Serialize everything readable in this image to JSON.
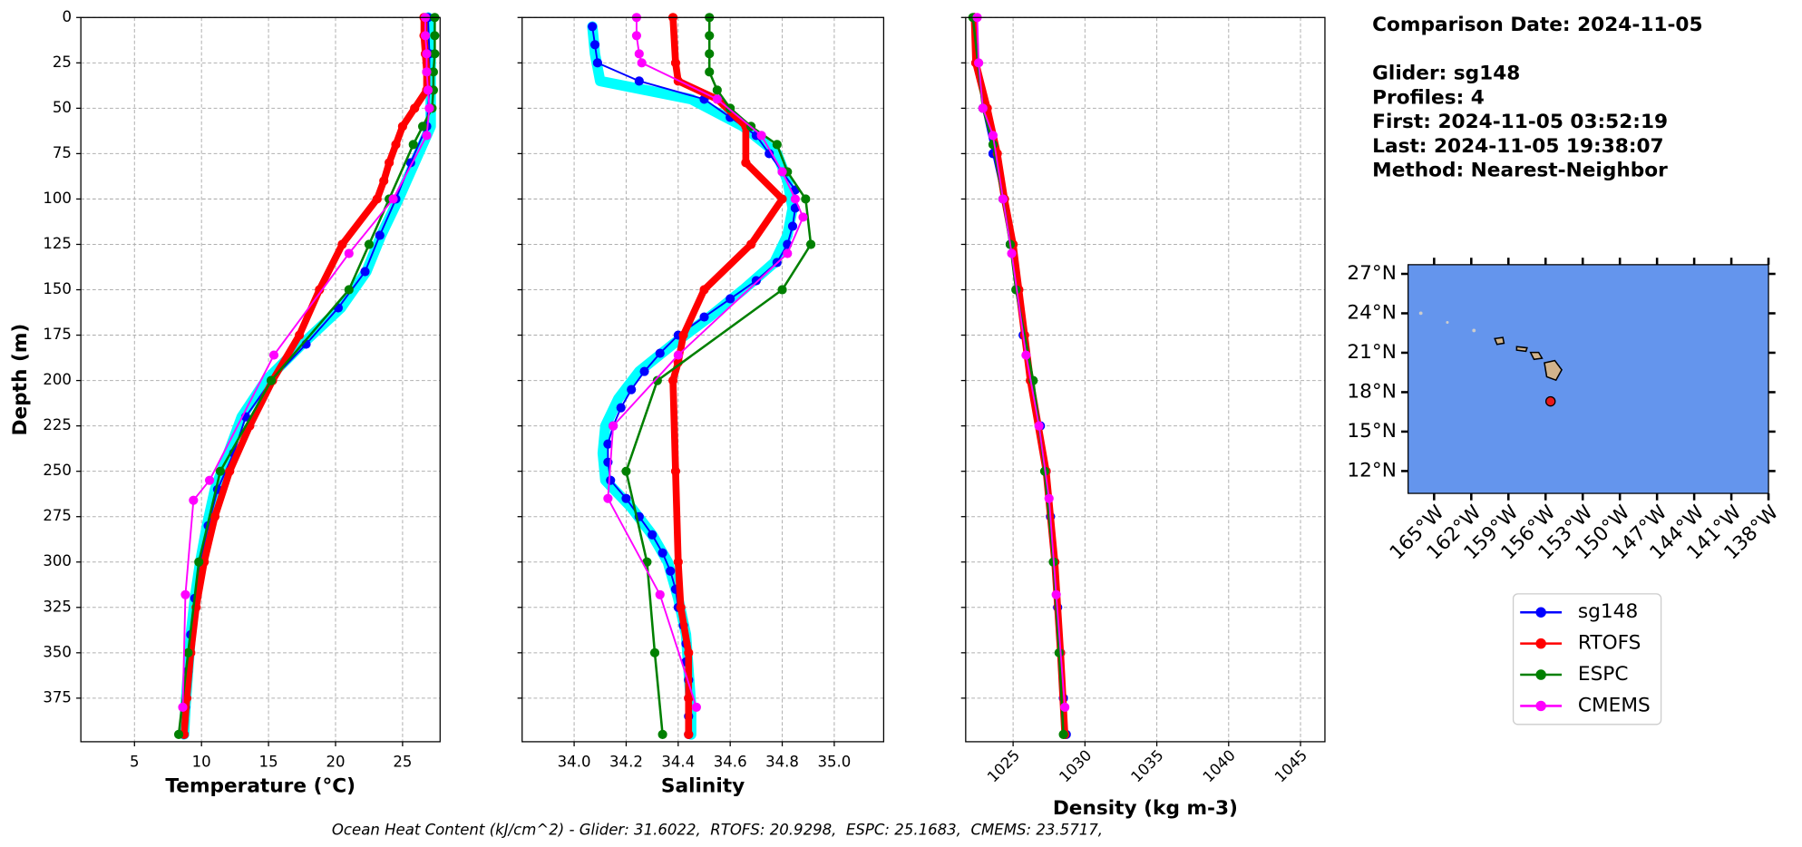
{
  "info": {
    "lines": [
      "Comparison Date: 2024-11-05",
      "Glider: sg148",
      "Profiles: 4",
      "First: 2024-11-05 03:52:19",
      "Last: 2024-11-05 19:38:07",
      "Method: Nearest-Neighbor"
    ]
  },
  "footer": "Ocean Heat Content (kJ/cm^2) - Glider: 31.6022,  RTOFS: 20.9298,  ESPC: 25.1683,  CMEMS: 23.5717,",
  "chart_data": [
    {
      "type": "line",
      "xlabel": "Temperature (°C)",
      "ylabel": "Depth (m)",
      "xlim": [
        1,
        27.8
      ],
      "xticks": [
        5,
        10,
        15,
        20,
        25
      ],
      "ylim": [
        0,
        399
      ],
      "y_inverted": true,
      "yticks": [
        0,
        25,
        50,
        75,
        100,
        125,
        150,
        175,
        200,
        225,
        250,
        275,
        300,
        325,
        350,
        375
      ],
      "grid": true,
      "series": [
        {
          "color": "#00ffff",
          "linewidth": 9,
          "marker": false,
          "y": [
            0,
            20,
            40,
            60,
            80,
            100,
            120,
            140,
            160,
            180,
            200,
            220,
            240,
            260,
            280,
            300,
            320,
            340,
            360,
            380,
            395
          ],
          "x": [
            26.9,
            27.1,
            27.1,
            27.1,
            25.9,
            24.7,
            23.4,
            22.3,
            20.4,
            17.5,
            14.8,
            13,
            12,
            11,
            10.4,
            9.9,
            9.5,
            9.2,
            9,
            8.8,
            8.7
          ]
        },
        {
          "name": "sg148",
          "color": "#0000ff",
          "linewidth": 1.5,
          "marker": true,
          "y": [
            0,
            20,
            40,
            60,
            80,
            100,
            120,
            140,
            160,
            180,
            200,
            220,
            240,
            260,
            280,
            300,
            320,
            340,
            360,
            380,
            395
          ],
          "x": [
            26.9,
            27,
            27,
            26.8,
            25.6,
            24.5,
            23.3,
            22.2,
            20.2,
            17.8,
            15.2,
            13.3,
            12.4,
            11.2,
            10.5,
            9.9,
            9.5,
            9.2,
            9,
            8.8,
            8.7
          ]
        },
        {
          "name": "RTOFS",
          "color": "#ff0000",
          "linewidth": 6,
          "marker": true,
          "y": [
            0,
            10,
            20,
            30,
            40,
            50,
            60,
            70,
            80,
            90,
            100,
            125,
            150,
            175,
            200,
            225,
            250,
            275,
            300,
            325,
            350,
            375,
            395
          ],
          "x": [
            26.6,
            26.6,
            26.7,
            26.8,
            26.8,
            25.9,
            25,
            24.5,
            24,
            23.6,
            23.1,
            20.5,
            18.8,
            17.3,
            15.3,
            13.6,
            12.1,
            11,
            10.2,
            9.6,
            9.2,
            8.9,
            8.7
          ]
        },
        {
          "name": "ESPC",
          "color": "#008000",
          "linewidth": 2,
          "marker": true,
          "y": [
            0,
            10,
            20,
            30,
            40,
            50,
            60,
            70,
            100,
            125,
            150,
            200,
            250,
            300,
            350,
            395
          ],
          "x": [
            27.4,
            27.4,
            27.4,
            27.3,
            27.3,
            27.2,
            26.5,
            25.8,
            24,
            22.5,
            21,
            15.2,
            11.4,
            9.8,
            9,
            8.3
          ]
        },
        {
          "name": "CMEMS",
          "color": "#ff00ff",
          "linewidth": 1.5,
          "marker": true,
          "y": [
            0,
            10,
            20,
            30,
            40,
            50,
            65,
            100,
            130,
            186,
            255,
            266,
            318,
            380
          ],
          "x": [
            26.7,
            26.7,
            26.8,
            26.8,
            26.9,
            27,
            26.8,
            24.3,
            21,
            15.4,
            10.6,
            9.4,
            8.8,
            8.6
          ]
        }
      ]
    },
    {
      "type": "line",
      "xlabel": "Salinity",
      "xlim": [
        33.8,
        35.19
      ],
      "xticks": [
        {
          "value": 34,
          "label": "34.0"
        },
        34.2,
        34.4,
        34.6,
        34.8,
        {
          "value": 35,
          "label": "35.0"
        }
      ],
      "ylim": [
        0,
        399
      ],
      "y_inverted": true,
      "ytick_labels": false,
      "yticks": [
        0,
        25,
        50,
        75,
        100,
        125,
        150,
        175,
        200,
        225,
        250,
        275,
        300,
        325,
        350,
        375
      ],
      "grid": true,
      "series": [
        {
          "color": "#00ffff",
          "linewidth": 9,
          "marker": false,
          "y": [
            5,
            20,
            35,
            45,
            60,
            75,
            90,
            105,
            120,
            135,
            150,
            165,
            180,
            195,
            210,
            225,
            240,
            255,
            270,
            285,
            300,
            320,
            340,
            360,
            380,
            395
          ],
          "x": [
            34.07,
            34.08,
            34.1,
            34.45,
            34.65,
            34.78,
            34.82,
            34.84,
            34.82,
            34.77,
            34.65,
            34.52,
            34.38,
            34.25,
            34.17,
            34.12,
            34.11,
            34.12,
            34.22,
            34.3,
            34.36,
            34.4,
            34.43,
            34.44,
            34.45,
            34.45
          ]
        },
        {
          "name": "sg148",
          "color": "#0000ff",
          "linewidth": 1.5,
          "marker": true,
          "y": [
            5,
            15,
            25,
            35,
            45,
            55,
            65,
            75,
            85,
            95,
            105,
            115,
            125,
            135,
            145,
            155,
            165,
            175,
            185,
            195,
            205,
            215,
            225,
            235,
            245,
            255,
            265,
            275,
            285,
            295,
            305,
            315,
            325,
            335,
            345,
            355,
            365,
            375,
            385,
            395
          ],
          "x": [
            34.07,
            34.08,
            34.09,
            34.25,
            34.5,
            34.6,
            34.7,
            34.75,
            34.8,
            34.85,
            34.85,
            34.84,
            34.82,
            34.78,
            34.7,
            34.6,
            34.5,
            34.4,
            34.33,
            34.27,
            34.22,
            34.18,
            34.15,
            34.13,
            34.13,
            34.14,
            34.2,
            34.25,
            34.3,
            34.34,
            34.37,
            34.39,
            34.4,
            34.42,
            34.43,
            34.43,
            34.44,
            34.44,
            34.44,
            34.44
          ]
        },
        {
          "name": "RTOFS",
          "color": "#ff0000",
          "linewidth": 6,
          "marker": true,
          "y": [
            0,
            25,
            35,
            45,
            60,
            80,
            100,
            125,
            150,
            175,
            190,
            200,
            250,
            300,
            325,
            350,
            375,
            395
          ],
          "x": [
            34.38,
            34.39,
            34.4,
            34.55,
            34.66,
            34.66,
            34.8,
            34.68,
            34.5,
            34.42,
            34.4,
            34.38,
            34.39,
            34.4,
            34.41,
            34.44,
            34.44,
            34.44
          ]
        },
        {
          "name": "ESPC",
          "color": "#008000",
          "linewidth": 2,
          "marker": true,
          "y": [
            0,
            10,
            20,
            30,
            40,
            50,
            60,
            70,
            85,
            100,
            125,
            150,
            200,
            250,
            300,
            350,
            395
          ],
          "x": [
            34.52,
            34.52,
            34.52,
            34.52,
            34.55,
            34.6,
            34.68,
            34.78,
            34.82,
            34.89,
            34.91,
            34.8,
            34.32,
            34.2,
            34.28,
            34.31,
            34.34
          ]
        },
        {
          "name": "CMEMS",
          "color": "#ff00ff",
          "linewidth": 1.5,
          "marker": true,
          "y": [
            0,
            10,
            20,
            25,
            45,
            65,
            85,
            100,
            110,
            130,
            186,
            225,
            265,
            318,
            380
          ],
          "x": [
            34.24,
            34.24,
            34.25,
            34.26,
            34.55,
            34.72,
            34.8,
            34.85,
            34.88,
            34.82,
            34.4,
            34.15,
            34.13,
            34.33,
            34.47
          ]
        }
      ]
    },
    {
      "type": "line",
      "xlabel": "Density (kg m-3)",
      "xtick_rotation": 45,
      "xlim": [
        1021.7,
        1046.7
      ],
      "xticks": [
        1025,
        1030,
        1035,
        1040,
        1045
      ],
      "ylim": [
        0,
        399
      ],
      "y_inverted": true,
      "ytick_labels": false,
      "yticks": [
        0,
        25,
        50,
        75,
        100,
        125,
        150,
        175,
        200,
        225,
        250,
        275,
        300,
        325,
        350,
        375
      ],
      "grid": true,
      "series": [
        {
          "name": "sg148",
          "color": "#0000ff",
          "linewidth": 1.5,
          "marker": true,
          "y": [
            0,
            25,
            50,
            75,
            100,
            125,
            150,
            175,
            200,
            225,
            250,
            275,
            300,
            325,
            350,
            375,
            395
          ],
          "x": [
            1022.3,
            1022.5,
            1022.9,
            1023.6,
            1024.3,
            1024.8,
            1025.2,
            1025.7,
            1026.3,
            1026.9,
            1027.3,
            1027.6,
            1027.9,
            1028.1,
            1028.3,
            1028.5,
            1028.7
          ]
        },
        {
          "name": "RTOFS",
          "color": "#ff0000",
          "linewidth": 6,
          "marker": true,
          "y": [
            0,
            25,
            50,
            75,
            100,
            125,
            150,
            175,
            200,
            250,
            300,
            350,
            395
          ],
          "x": [
            1022.3,
            1022.4,
            1023.2,
            1023.9,
            1024.4,
            1025,
            1025.4,
            1025.8,
            1026.2,
            1027.3,
            1027.9,
            1028.3,
            1028.6
          ]
        },
        {
          "name": "ESPC",
          "color": "#008000",
          "linewidth": 2,
          "marker": true,
          "y": [
            0,
            50,
            70,
            100,
            125,
            150,
            200,
            250,
            300,
            350,
            395
          ],
          "x": [
            1022.2,
            1022.9,
            1023.6,
            1024.3,
            1024.8,
            1025.2,
            1026.4,
            1027.2,
            1027.8,
            1028.2,
            1028.5
          ]
        },
        {
          "name": "CMEMS",
          "color": "#ff00ff",
          "linewidth": 1.5,
          "marker": true,
          "y": [
            0,
            25,
            50,
            65,
            100,
            130,
            186,
            225,
            265,
            318,
            380
          ],
          "x": [
            1022.5,
            1022.6,
            1022.9,
            1023.6,
            1024.3,
            1024.9,
            1025.9,
            1026.8,
            1027.5,
            1028,
            1028.6
          ]
        }
      ]
    }
  ],
  "map": {
    "type": "map",
    "ocean_color": "#6495ed",
    "xlim": [
      -167.1,
      -138
    ],
    "ylim": [
      10.3,
      27.7
    ],
    "xticks": [
      {
        "value": -165,
        "label": "165°W"
      },
      {
        "value": -162,
        "label": "162°W"
      },
      {
        "value": -159,
        "label": "159°W"
      },
      {
        "value": -156,
        "label": "156°W"
      },
      {
        "value": -153,
        "label": "153°W"
      },
      {
        "value": -150,
        "label": "150°W"
      },
      {
        "value": -147,
        "label": "147°W"
      },
      {
        "value": -144,
        "label": "144°W"
      },
      {
        "value": -141,
        "label": "141°W"
      },
      {
        "value": -138,
        "label": "138°W"
      }
    ],
    "yticks": [
      {
        "value": 12,
        "label": "12°N"
      },
      {
        "value": 15,
        "label": "15°N"
      },
      {
        "value": 18,
        "label": "18°N"
      },
      {
        "value": 21,
        "label": "21°N"
      },
      {
        "value": 24,
        "label": "24°N"
      },
      {
        "value": 27,
        "label": "27°N"
      }
    ],
    "point": {
      "lon": -155.6,
      "lat": 17.3,
      "color": "#e8191a"
    }
  }
}
